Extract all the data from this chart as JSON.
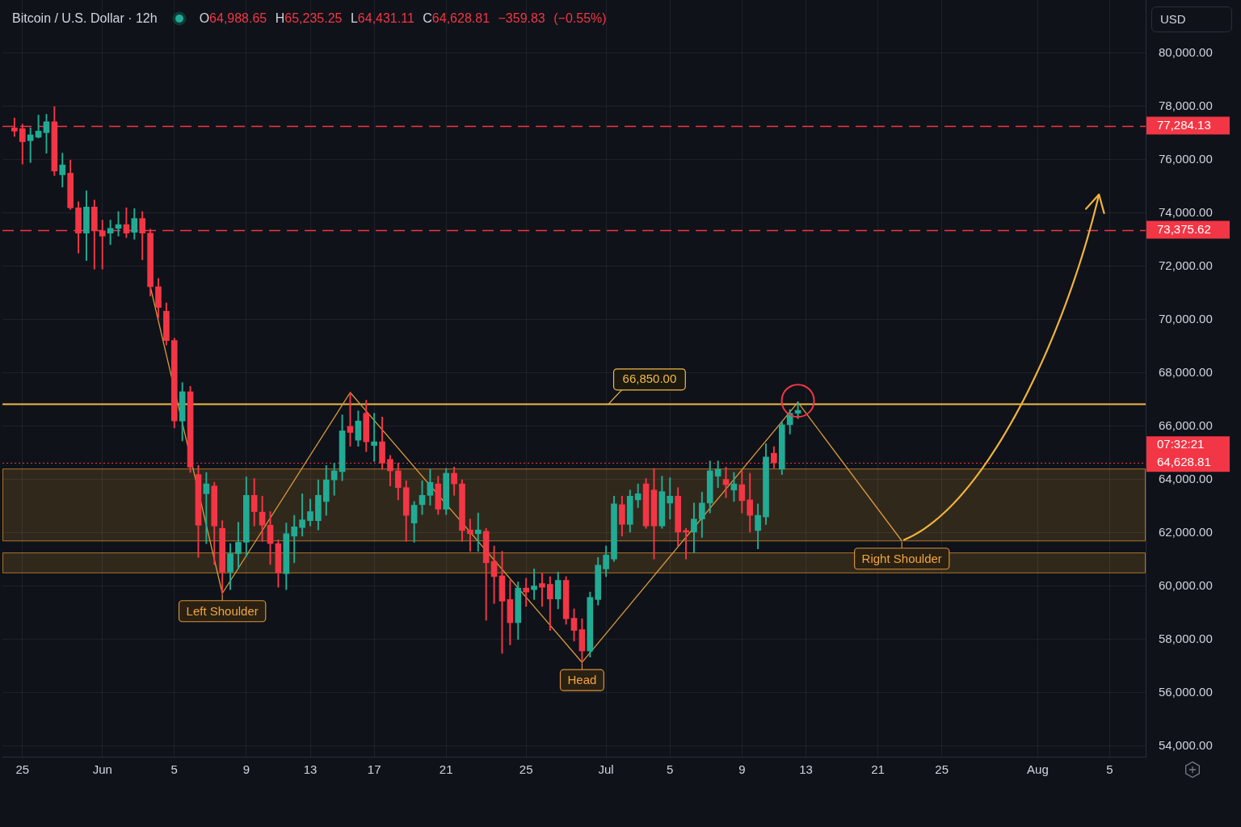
{
  "chart_data": {
    "type": "candlestick",
    "title": "Bitcoin / U.S. Dollar · 12h",
    "subtitle": "O64,988.65 H65,235.25 L64,431.11 C64,628.81 −359.83 (−0.55%)",
    "ylabel": "USD",
    "categories": [
      null,
      null,
      "25",
      null,
      null,
      null,
      null,
      null,
      null,
      null,
      null,
      null,
      "Jun",
      null,
      null,
      null,
      null,
      null,
      null,
      null,
      null,
      "5",
      null,
      null,
      null,
      null,
      null,
      null,
      null,
      null,
      "9",
      null,
      null,
      null,
      null,
      null,
      null,
      null,
      "13",
      null,
      null,
      null,
      null,
      null,
      null,
      null,
      "17",
      null,
      null,
      null,
      null,
      null,
      null,
      null,
      null,
      "21",
      null,
      null,
      null,
      null,
      null,
      null,
      null,
      null,
      null,
      "25",
      null,
      null,
      null,
      null,
      null,
      null,
      null,
      null,
      null,
      "Jul",
      null,
      null,
      null,
      null,
      null,
      null,
      null,
      "5",
      null,
      null,
      null,
      null,
      null,
      null,
      null,
      null,
      "9",
      null,
      null,
      null,
      null,
      null,
      null,
      null,
      "13",
      null,
      null,
      null,
      null,
      null,
      null,
      null,
      null,
      "21",
      null,
      null,
      null,
      null,
      null,
      null,
      null,
      "25",
      null,
      null,
      null,
      null,
      null,
      null,
      null,
      null,
      null,
      null,
      null,
      "Aug",
      null,
      null,
      null,
      null,
      null,
      null,
      null,
      null,
      "5",
      null,
      null,
      null,
      null
    ],
    "ohlc": [
      null,
      [
        77200,
        77570,
        76880,
        77080
      ],
      [
        77170,
        77340,
        75840,
        76680
      ],
      [
        76720,
        77200,
        75900,
        76940
      ],
      [
        76850,
        77680,
        76820,
        77080
      ],
      [
        77020,
        77710,
        76250,
        77430
      ],
      [
        77430,
        78000,
        75410,
        75580
      ],
      [
        75440,
        76250,
        74980,
        75810
      ],
      [
        75500,
        75990,
        74140,
        74200
      ],
      [
        74200,
        74430,
        72500,
        73250
      ],
      [
        73250,
        74840,
        72220,
        74230
      ],
      [
        74230,
        74490,
        71900,
        73340
      ],
      [
        73340,
        73740,
        71900,
        73140
      ],
      [
        73250,
        73740,
        72820,
        73430
      ],
      [
        73430,
        74060,
        73140,
        73570
      ],
      [
        73570,
        74200,
        73080,
        73250
      ],
      [
        73280,
        74170,
        73020,
        73800
      ],
      [
        73800,
        74060,
        72250,
        73250
      ],
      [
        73250,
        73400,
        70890,
        71240
      ],
      [
        71240,
        71550,
        70060,
        70460
      ],
      [
        70320,
        70630,
        69050,
        69220
      ],
      [
        69220,
        69310,
        65940,
        66200
      ],
      [
        66200,
        67640,
        65450,
        67300
      ],
      [
        67300,
        67500,
        64270,
        64470
      ],
      [
        64190,
        64530,
        61080,
        62290
      ],
      [
        63470,
        64270,
        61600,
        63840
      ],
      [
        63760,
        63900,
        60820,
        62260
      ],
      [
        62170,
        62460,
        59730,
        60530
      ],
      [
        60530,
        61600,
        59870,
        61220
      ],
      [
        61220,
        62400,
        60650,
        61650
      ],
      [
        61650,
        64100,
        61110,
        63410
      ],
      [
        63410,
        64040,
        62260,
        62800
      ],
      [
        62780,
        63380,
        61680,
        62290
      ],
      [
        62290,
        62800,
        60820,
        61600
      ],
      [
        61600,
        61740,
        59960,
        60500
      ],
      [
        60470,
        62370,
        59870,
        61970
      ],
      [
        61880,
        62660,
        60880,
        62230
      ],
      [
        62200,
        63470,
        61880,
        62490
      ],
      [
        62460,
        63270,
        62260,
        62800
      ],
      [
        62460,
        63990,
        62110,
        63410
      ],
      [
        63180,
        64530,
        62660,
        63990
      ],
      [
        63990,
        64620,
        63410,
        64330
      ],
      [
        64300,
        66430,
        63960,
        65830
      ],
      [
        66000,
        67270,
        65250,
        65770
      ],
      [
        65480,
        66580,
        65250,
        66200
      ],
      [
        66490,
        66980,
        65050,
        65420
      ],
      [
        65280,
        66490,
        64680,
        65420
      ],
      [
        65420,
        66350,
        64390,
        64620
      ],
      [
        64760,
        64910,
        63760,
        64330
      ],
      [
        64330,
        64620,
        63240,
        63700
      ],
      [
        63700,
        63960,
        61680,
        62660
      ],
      [
        62370,
        63180,
        61650,
        63040
      ],
      [
        63060,
        63960,
        62690,
        63410
      ],
      [
        63410,
        64390,
        63040,
        63900
      ],
      [
        63840,
        64130,
        62690,
        62890
      ],
      [
        62890,
        64420,
        62690,
        64240
      ],
      [
        64240,
        64470,
        63410,
        63840
      ],
      [
        63840,
        63990,
        61680,
        62090
      ],
      [
        62110,
        62520,
        61310,
        61970
      ],
      [
        61970,
        62750,
        61310,
        62110
      ],
      [
        62060,
        62170,
        58720,
        60880
      ],
      [
        60930,
        61510,
        59350,
        60360
      ],
      [
        60390,
        61310,
        57480,
        59440
      ],
      [
        59500,
        60220,
        57800,
        58630
      ],
      [
        58630,
        60160,
        58000,
        59930
      ],
      [
        59930,
        60300,
        59240,
        59780
      ],
      [
        59870,
        60650,
        59500,
        60010
      ],
      [
        60100,
        60500,
        59240,
        59960
      ],
      [
        60070,
        60360,
        58340,
        59520
      ],
      [
        59520,
        60530,
        59150,
        60220
      ],
      [
        60220,
        60360,
        58570,
        58780
      ],
      [
        58800,
        59150,
        57940,
        58340
      ],
      [
        58370,
        58780,
        57140,
        57570
      ],
      [
        57570,
        59780,
        57340,
        59580
      ],
      [
        59500,
        61080,
        59290,
        60790
      ],
      [
        60650,
        61510,
        60360,
        61170
      ],
      [
        61020,
        63380,
        60930,
        63090
      ],
      [
        63060,
        63380,
        61880,
        62320
      ],
      [
        62320,
        63610,
        62030,
        63380
      ],
      [
        63240,
        63840,
        62950,
        63470
      ],
      [
        63840,
        64040,
        62170,
        62260
      ],
      [
        63610,
        64420,
        61020,
        62260
      ],
      [
        62260,
        64130,
        62170,
        63550
      ],
      [
        63120,
        64070,
        62520,
        63380
      ],
      [
        63380,
        63700,
        61510,
        62030
      ],
      [
        62090,
        62170,
        61020,
        62030
      ],
      [
        62030,
        63120,
        61250,
        62520
      ],
      [
        62520,
        63530,
        61830,
        63120
      ],
      [
        63120,
        64700,
        62750,
        64330
      ],
      [
        64130,
        64700,
        63700,
        64390
      ],
      [
        64010,
        64470,
        63320,
        63810
      ],
      [
        63610,
        64270,
        63180,
        63840
      ],
      [
        63810,
        64330,
        62750,
        63210
      ],
      [
        63240,
        64240,
        62030,
        62660
      ],
      [
        62090,
        63090,
        61400,
        62660
      ],
      [
        62600,
        65340,
        62320,
        64850
      ],
      [
        64988.65,
        65235.25,
        64431.11,
        64628.81
      ],
      [
        64390,
        66200,
        64190,
        66060
      ],
      [
        66060,
        66630,
        65710,
        66490
      ],
      [
        66490,
        66920,
        66290,
        66600
      ],
      null,
      null,
      null,
      null,
      null,
      null,
      null,
      null,
      null,
      null,
      null,
      null,
      null,
      null,
      null,
      null,
      null,
      null,
      null,
      null,
      null,
      null,
      null,
      null,
      null,
      null,
      null,
      null,
      null,
      null,
      null,
      null,
      null,
      null,
      null,
      null,
      null,
      null,
      null,
      null,
      null,
      null,
      null
    ],
    "colors": [
      null,
      "#f23645",
      "#f23645",
      "#22ab94",
      "#22ab94",
      "#22ab94",
      "#f23645",
      "#22ab94",
      "#f23645",
      "#f23645",
      "#22ab94",
      "#f23645",
      "#f23645",
      "#22ab94",
      "#22ab94",
      "#f23645",
      "#22ab94",
      "#f23645",
      "#f23645",
      "#f23645",
      "#f23645",
      "#f23645",
      "#22ab94",
      "#f23645",
      "#f23645",
      "#22ab94",
      "#f23645",
      "#f23645",
      "#22ab94",
      "#22ab94",
      "#22ab94",
      "#f23645",
      "#f23645",
      "#f23645",
      "#f23645",
      "#22ab94",
      "#22ab94",
      "#22ab94",
      "#22ab94",
      "#22ab94",
      "#22ab94",
      "#22ab94",
      "#22ab94",
      "#f23645",
      "#22ab94",
      "#f23645",
      "#22ab94",
      "#f23645",
      "#f23645",
      "#f23645",
      "#f23645",
      "#22ab94",
      "#22ab94",
      "#22ab94",
      "#f23645",
      "#22ab94",
      "#f23645",
      "#f23645",
      "#f23645",
      "#22ab94",
      "#f23645",
      "#f23645",
      "#f23645",
      "#f23645",
      "#22ab94",
      "#f23645",
      "#22ab94",
      "#f23645",
      "#f23645",
      "#22ab94",
      "#f23645",
      "#f23645",
      "#f23645",
      "#22ab94",
      "#22ab94",
      "#22ab94",
      "#22ab94",
      "#f23645",
      "#22ab94",
      "#22ab94",
      "#f23645",
      "#f23645",
      "#22ab94",
      "#22ab94",
      "#f23645",
      "#f23645",
      "#22ab94",
      "#22ab94",
      "#22ab94",
      "#22ab94",
      "#f23645",
      "#22ab94",
      "#f23645",
      "#f23645",
      "#22ab94",
      "#22ab94",
      "#f23645",
      "#22ab94",
      "#22ab94",
      "#22ab94",
      null,
      null,
      null,
      null,
      null,
      null,
      null,
      null,
      null,
      null,
      null,
      null,
      null,
      null,
      null,
      null,
      null,
      null,
      null,
      null,
      null,
      null,
      null,
      null,
      null,
      null,
      null,
      null,
      null,
      null,
      null,
      null,
      null,
      null,
      null,
      null,
      null,
      null,
      null,
      null,
      null,
      null,
      null
    ],
    "series": [
      {
        "type": "line",
        "color": "#d99a3a",
        "values": [
          null,
          null,
          null,
          null,
          null,
          null,
          null,
          null,
          null,
          null,
          null,
          null,
          null,
          null,
          null,
          null,
          null,
          null,
          71240,
          null,
          null,
          null,
          null,
          null,
          null,
          null,
          null,
          59730,
          null,
          null,
          null,
          null,
          null,
          null,
          null,
          null,
          null,
          null,
          null,
          null,
          null,
          null,
          null,
          67270,
          null,
          null,
          null,
          null,
          null,
          null,
          null,
          null,
          null,
          null,
          null,
          null,
          null,
          null,
          null,
          null,
          null,
          null,
          null,
          null,
          null,
          null,
          null,
          null,
          null,
          null,
          null,
          null,
          57140,
          null,
          null,
          null,
          null,
          null,
          null,
          null,
          null,
          null,
          null,
          null,
          null,
          null,
          null,
          null,
          null,
          null,
          null,
          null,
          null,
          null,
          null,
          null,
          null,
          null,
          null,
          66900,
          null,
          null,
          null,
          null,
          null,
          null,
          null,
          null,
          null,
          null,
          null,
          null,
          61700,
          null,
          null,
          null,
          null,
          null,
          null,
          null,
          null,
          null,
          null,
          null,
          null,
          null,
          null,
          null,
          null,
          null,
          null,
          null,
          null,
          null,
          null,
          null,
          null,
          null,
          null,
          null,
          null,
          null,
          null
        ]
      }
    ],
    "ylim": [
      53600,
      82000
    ],
    "yticks": [
      {
        "value": 54000,
        "label": "54,000.00"
      },
      {
        "value": 56000,
        "label": "56,000.00"
      },
      {
        "value": 58000,
        "label": "58,000.00"
      },
      {
        "value": 60000,
        "label": "60,000.00"
      },
      {
        "value": 62000,
        "label": "62,000.00"
      },
      {
        "value": 64000,
        "label": "64,000.00"
      },
      {
        "value": 66000,
        "label": "66,000.00"
      },
      {
        "value": 68000,
        "label": "68,000.00"
      },
      {
        "value": 70000,
        "label": "70,000.00"
      },
      {
        "value": 72000,
        "label": "72,000.00"
      },
      {
        "value": 74000,
        "label": "74,000.00"
      },
      {
        "value": 76000,
        "label": "76,000.00"
      },
      {
        "value": 78000,
        "label": "78,000.00"
      },
      {
        "value": 80000,
        "label": "80,000.00"
      }
    ],
    "ref_lines": [
      {
        "axis": "y",
        "value": 77284.13,
        "label": "77,284.13",
        "color": "#f23645",
        "line_style": "dashed"
      },
      {
        "axis": "y",
        "value": 73375.62,
        "label": "73,375.62",
        "color": "#f23645",
        "line_style": "dashed"
      },
      {
        "axis": "y",
        "value": 66850,
        "label": "66,850.00",
        "color": "#f2b94b",
        "line_style": "solid"
      },
      {
        "axis": "y",
        "value": 64628.81,
        "label": "64,628.81\n07:32:21",
        "color": "#f23645",
        "line_style": "dotted"
      }
    ],
    "bands": [
      {
        "axis": "y",
        "from": 61700,
        "to": 64400,
        "color": "#e59a2f"
      },
      {
        "axis": "y",
        "from": 60500,
        "to": 61250,
        "color": "#e59a2f"
      }
    ],
    "annotations": [
      {
        "text": "Left Shoulder",
        "y": 59730
      },
      {
        "text": "Head",
        "y": 57140
      },
      {
        "text": "Right Shoulder",
        "y": 61700
      }
    ],
    "grid": true
  }
}
